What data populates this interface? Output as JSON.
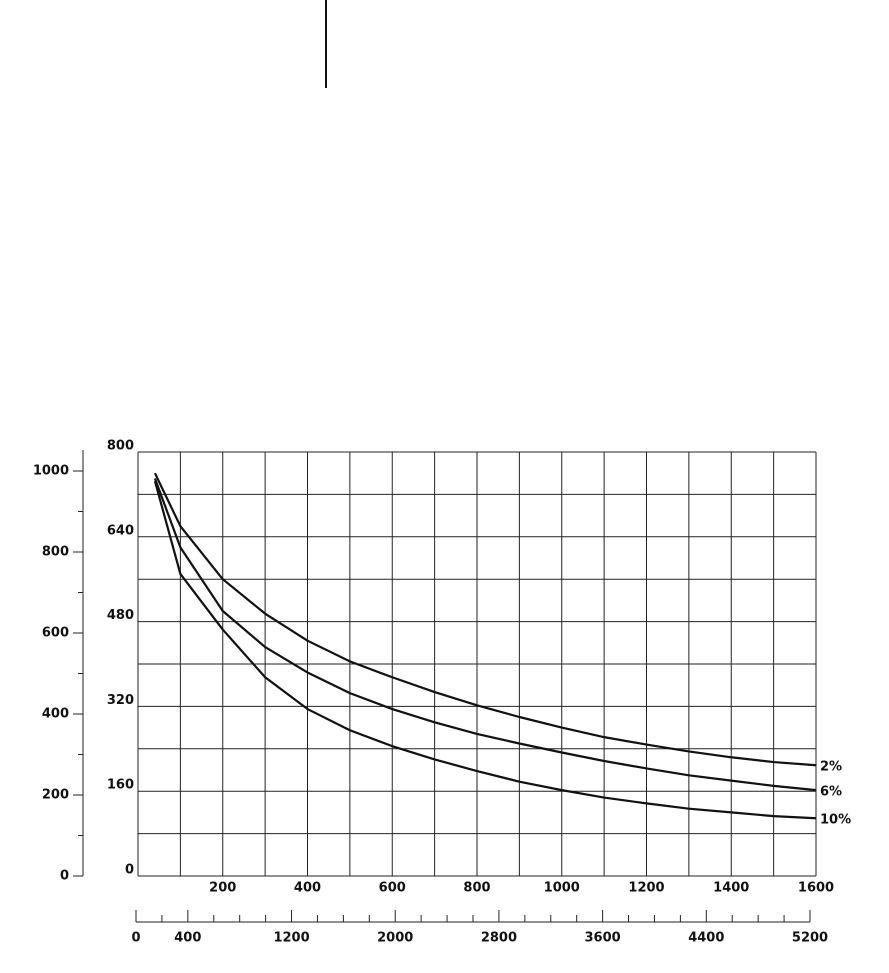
{
  "chart_data": {
    "type": "line",
    "x": [
      40,
      100,
      200,
      300,
      400,
      500,
      600,
      700,
      800,
      900,
      1000,
      1100,
      1200,
      1300,
      1400,
      1500,
      1600
    ],
    "series": [
      {
        "name": "2%",
        "color": "#111111",
        "values": [
          760,
          660,
          560,
          495,
          444,
          405,
          375,
          347,
          322,
          300,
          280,
          262,
          248,
          235,
          224,
          215,
          209
        ]
      },
      {
        "name": "6%",
        "color": "#111111",
        "values": [
          750,
          620,
          500,
          432,
          384,
          345,
          315,
          290,
          268,
          250,
          233,
          217,
          203,
          190,
          180,
          170,
          162
        ]
      },
      {
        "name": "10%",
        "color": "#111111",
        "values": [
          745,
          570,
          465,
          375,
          315,
          275,
          245,
          220,
          198,
          178,
          162,
          148,
          137,
          127,
          120,
          113,
          109
        ]
      }
    ],
    "xlim": [
      0,
      1600
    ],
    "xticks": [
      200,
      400,
      600,
      800,
      1000,
      1200,
      1400,
      1600
    ],
    "x_grid": [
      100,
      300,
      500,
      700,
      900,
      1100,
      1300,
      1500
    ],
    "ylim": [
      0,
      800
    ],
    "yticks": [
      0,
      160,
      320,
      480,
      640,
      800
    ],
    "y_grid": [
      80,
      240,
      400,
      560,
      720
    ],
    "y2lim": [
      0,
      1000
    ],
    "y2ticks": [
      0,
      200,
      400,
      600,
      800,
      1000
    ],
    "y2_minor_ticks": [
      100,
      300,
      500,
      700,
      900
    ],
    "x2lim": [
      0,
      5200
    ],
    "x2ticks": [
      0,
      400,
      1200,
      2000,
      2800,
      3600,
      4400,
      5200
    ],
    "x2_minor_ticks": [
      200,
      600,
      800,
      1000,
      1400,
      1600,
      1800,
      2200,
      2400,
      2600,
      3000,
      3200,
      3400,
      3800,
      4000,
      4200,
      4600,
      4800,
      5000
    ],
    "grid": true
  }
}
